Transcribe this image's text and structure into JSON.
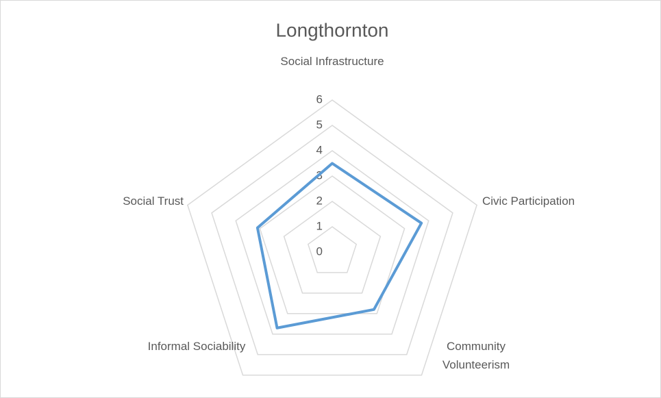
{
  "chart_data": {
    "type": "radar",
    "title": "Longthornton",
    "categories": [
      "Social Infrastructure",
      "Civic Participation",
      "Community Volunteerism",
      "Informal Sociability",
      "Social Trust"
    ],
    "series": [
      {
        "name": "Longthornton",
        "color": "#5b9bd5",
        "values": [
          3.5,
          3.7,
          2.8,
          3.7,
          3.1
        ]
      }
    ],
    "ylim": [
      0,
      6
    ],
    "yticks": [
      0,
      1,
      2,
      3,
      4,
      5,
      6
    ],
    "grid": true
  }
}
